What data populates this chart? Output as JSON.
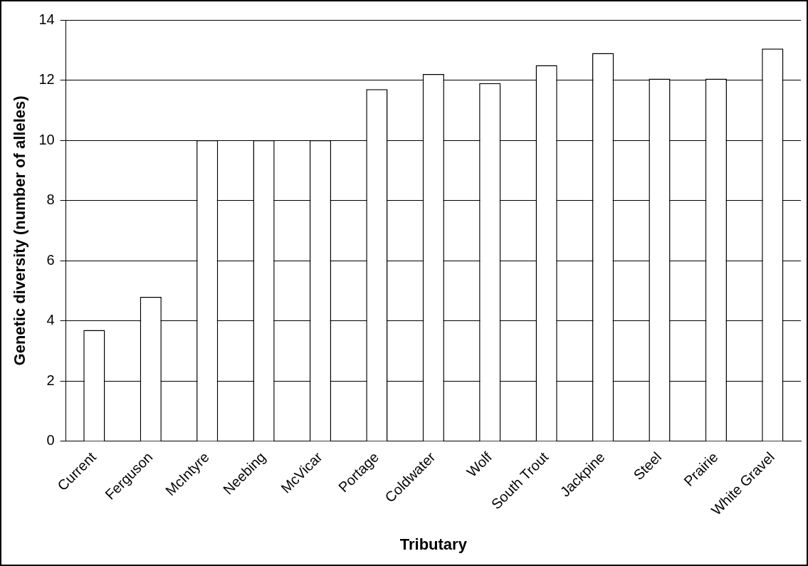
{
  "chart_data": {
    "type": "bar",
    "xlabel": "Tributary",
    "ylabel": "Genetic diversity (number of alleles)",
    "categories": [
      "Current",
      "Ferguson",
      "McIntyre",
      "Neebing",
      "McVicar",
      "Portage",
      "Coldwater",
      "Wolf",
      "South Trout",
      "Jackpine",
      "Steel",
      "Prairie",
      "White Gravel"
    ],
    "values": [
      3.7,
      4.8,
      10,
      10,
      10,
      11.7,
      12.2,
      11.9,
      12.5,
      12.9,
      12.05,
      12.05,
      13.05
    ],
    "color": "#ffffff",
    "ylim": [
      0,
      14
    ],
    "yticks": [
      0,
      2,
      4,
      6,
      8,
      10,
      12,
      14
    ],
    "grid": "y",
    "legend": false
  }
}
